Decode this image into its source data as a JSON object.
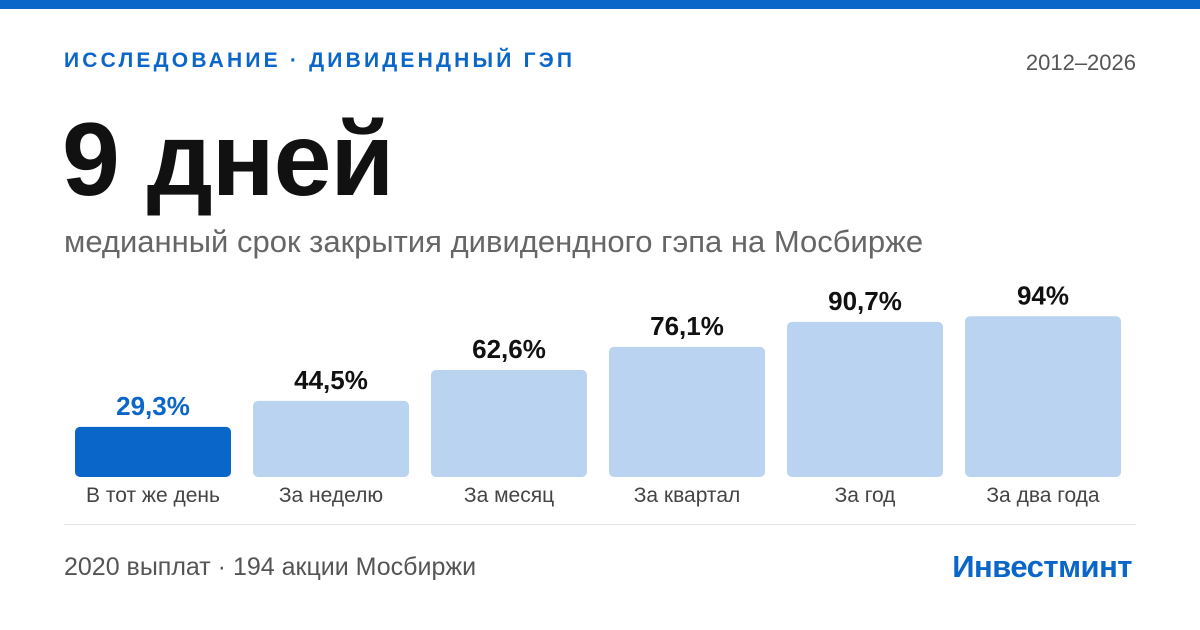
{
  "colors": {
    "accent": "#0a66c8",
    "bar_highlight": "#0a66c8",
    "bar_default": "#b9d3f0",
    "label_highlight": "#0a66c8",
    "label_default": "#111111",
    "category_text": "#444444"
  },
  "header": {
    "kicker": "ИССЛЕДОВАНИЕ · ДИВИДЕНДНЫЙ ГЭП",
    "years": "2012–2026",
    "headline": "9 дней",
    "subtitle": "медианный срок закрытия дивидендного гэпа на Мосбирже"
  },
  "footer": {
    "note": "2020 выплат · 194 акции Мосбиржи",
    "brand": "Инвестминт"
  },
  "chart_data": {
    "type": "bar",
    "categories": [
      "В тот же день",
      "За неделю",
      "За месяц",
      "За квартал",
      "За год",
      "За два года"
    ],
    "values": [
      29.3,
      44.5,
      62.6,
      76.1,
      90.7,
      94
    ],
    "value_labels": [
      "29,3%",
      "44,5%",
      "62,6%",
      "76,1%",
      "90,7%",
      "94%"
    ],
    "highlight_index": 0,
    "ylim": [
      0,
      100
    ]
  }
}
